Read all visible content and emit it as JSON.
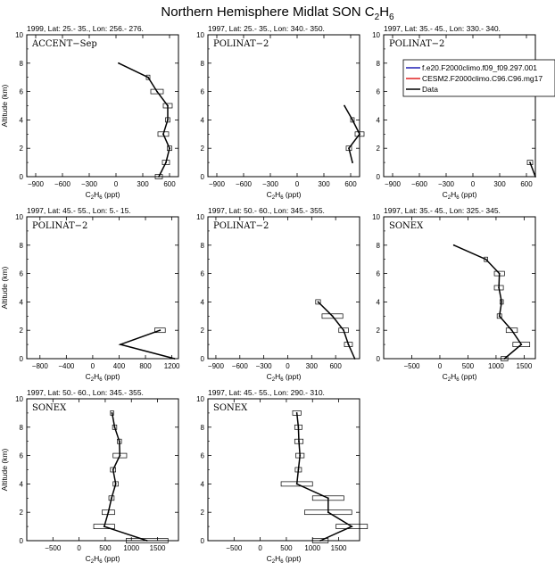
{
  "figure": {
    "title": "Northern Hemisphere Midlat SON C",
    "title_sub": "2",
    "title_end": "H",
    "title_sub2": "6"
  },
  "legend": {
    "entries": [
      {
        "label": "f.e20.F2000climo.f09_f09.297.001",
        "color": "#1f1fb4"
      },
      {
        "label": "CESM2.F2000climo.C96.C96.mg17",
        "color": "#e02020"
      },
      {
        "label": "Data",
        "color": "#000000"
      }
    ]
  },
  "chart_data": [
    {
      "type": "line",
      "header": "1999, Lat: 25.- 35., Lon: 256.- 276.",
      "campaign": "ACCENT−Sep",
      "xlabel": "C2H6 (ppt)",
      "ylabel": "Altitude (km)",
      "xlim": [
        -1000,
        700
      ],
      "ylim": [
        0,
        10
      ],
      "xticks": [
        -900,
        -600,
        -300,
        0,
        300,
        600
      ],
      "yticks": [
        0,
        2,
        4,
        6,
        8,
        10
      ],
      "data": {
        "y": [
          8,
          7,
          6,
          5,
          4,
          3,
          2,
          1,
          0
        ],
        "x": [
          30,
          360,
          460,
          580,
          580,
          530,
          600,
          560,
          480
        ],
        "spread": [
          0,
          20,
          70,
          50,
          25,
          60,
          25,
          40,
          40
        ]
      }
    },
    {
      "type": "line",
      "header": "1997, Lat: 25.- 35., Lon: 340.- 350.",
      "campaign": "POLINAT−2",
      "xlabel": "C2H6 (ppt)",
      "ylabel": "",
      "xlim": [
        -1000,
        700
      ],
      "ylim": [
        0,
        10
      ],
      "xticks": [
        -900,
        -600,
        -300,
        0,
        300,
        600
      ],
      "yticks": [
        0,
        2,
        4,
        6,
        8,
        10
      ],
      "data": {
        "y": [
          5,
          4,
          3,
          2,
          1
        ],
        "x": [
          530,
          620,
          700,
          580,
          620
        ],
        "spread": [
          0,
          20,
          50,
          30,
          0
        ]
      }
    },
    {
      "type": "line",
      "header": "1997, Lat: 35.- 45., Lon: 330.- 340.",
      "campaign": "POLINAT−2",
      "xlabel": "C2H6 (ppt)",
      "ylabel": "",
      "xlim": [
        -1000,
        700
      ],
      "ylim": [
        0,
        10
      ],
      "xticks": [
        -900,
        -600,
        -300,
        0,
        300,
        600
      ],
      "yticks": [
        0,
        2,
        4,
        6,
        8,
        10
      ],
      "data": {
        "y": [
          1,
          0
        ],
        "x": [
          640,
          700
        ],
        "spread": [
          30,
          0
        ]
      }
    },
    {
      "type": "line",
      "header": "1997, Lat: 45.- 55., Lon: 5.- 15.",
      "campaign": "POLINAT−2",
      "xlabel": "C2H6 (ppt)",
      "ylabel": "Altitude (km)",
      "xlim": [
        -1000,
        1300
      ],
      "ylim": [
        0,
        10
      ],
      "xticks": [
        -800,
        -400,
        0,
        400,
        800,
        1200
      ],
      "yticks": [
        0,
        2,
        4,
        6,
        8,
        10
      ],
      "data": {
        "y": [
          2,
          1,
          0
        ],
        "x": [
          1020,
          420,
          1240
        ],
        "spread": [
          80,
          0,
          0
        ]
      }
    },
    {
      "type": "line",
      "header": "1997, Lat: 50.- 60., Lon: 345.- 355.",
      "campaign": "POLINAT−2",
      "xlabel": "C2H6 (ppt)",
      "ylabel": "",
      "xlim": [
        -1000,
        900
      ],
      "ylim": [
        0,
        10
      ],
      "xticks": [
        -900,
        -600,
        -300,
        0,
        300,
        600
      ],
      "yticks": [
        0,
        2,
        4,
        6,
        8,
        10
      ],
      "data": {
        "y": [
          4,
          3,
          2,
          1,
          0
        ],
        "x": [
          380,
          560,
          700,
          760,
          840
        ],
        "spread": [
          30,
          130,
          60,
          50,
          0
        ]
      }
    },
    {
      "type": "line",
      "header": "1997, Lat: 35.- 45., Lon: 325.- 345.",
      "campaign": "SONEX",
      "xlabel": "C2H6 (ppt)",
      "ylabel": "",
      "xlim": [
        -1000,
        1700
      ],
      "ylim": [
        0,
        10
      ],
      "xticks": [
        -500,
        0,
        500,
        1000,
        1500
      ],
      "yticks": [
        0,
        2,
        4,
        6,
        8,
        10
      ],
      "data": {
        "y": [
          8,
          7,
          6,
          5,
          4,
          3,
          2,
          1,
          0
        ],
        "x": [
          250,
          820,
          1060,
          1050,
          1100,
          1060,
          1280,
          1450,
          1150
        ],
        "spread": [
          0,
          30,
          90,
          80,
          30,
          40,
          100,
          150,
          60
        ]
      }
    },
    {
      "type": "line",
      "header": "1997, Lat: 50.- 60., Lon: 345.- 355.",
      "campaign": "SONEX",
      "xlabel": "C2H6 (ppt)",
      "ylabel": "Altitude (km)",
      "xlim": [
        -1000,
        1900
      ],
      "ylim": [
        0,
        10
      ],
      "xticks": [
        -500,
        0,
        500,
        1000,
        1500
      ],
      "yticks": [
        0,
        2,
        4,
        6,
        8,
        10
      ],
      "data": {
        "y": [
          9,
          8,
          7,
          6,
          5,
          4,
          3,
          2,
          1,
          0
        ],
        "x": [
          630,
          680,
          770,
          780,
          650,
          700,
          620,
          560,
          480,
          1300
        ],
        "spread": [
          30,
          40,
          40,
          130,
          50,
          50,
          50,
          120,
          200,
          400
        ]
      }
    },
    {
      "type": "line",
      "header": "1997, Lat: 45.- 55., Lon: 290.- 310.",
      "campaign": "SONEX",
      "xlabel": "C2H6 (ppt)",
      "ylabel": "",
      "xlim": [
        -1000,
        1900
      ],
      "ylim": [
        0,
        10
      ],
      "xticks": [
        -500,
        0,
        500,
        1000,
        1500
      ],
      "yticks": [
        0,
        2,
        4,
        6,
        8,
        10
      ],
      "data": {
        "y": [
          9,
          8,
          7,
          6,
          5,
          4,
          3,
          2,
          1,
          0
        ],
        "x": [
          700,
          730,
          740,
          760,
          730,
          700,
          1300,
          1300,
          1750,
          1150
        ],
        "spread": [
          80,
          70,
          80,
          80,
          60,
          300,
          300,
          450,
          300,
          150
        ]
      }
    }
  ]
}
